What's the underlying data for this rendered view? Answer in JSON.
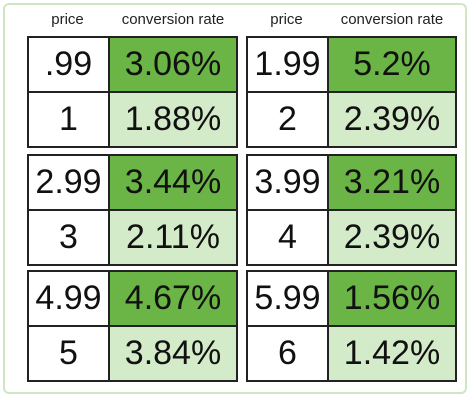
{
  "headers": [
    "price",
    "conversion rate",
    "price",
    "conversion rate"
  ],
  "blocks": [
    {
      "rows": [
        [
          ".99",
          "3.06%"
        ],
        [
          "1",
          "1.88%"
        ]
      ]
    },
    {
      "rows": [
        [
          "1.99",
          "5.2%"
        ],
        [
          "2",
          "2.39%"
        ]
      ]
    },
    {
      "rows": [
        [
          "2.99",
          "3.44%"
        ],
        [
          "3",
          "2.11%"
        ]
      ]
    },
    {
      "rows": [
        [
          "3.99",
          "3.21%"
        ],
        [
          "4",
          "2.39%"
        ]
      ]
    },
    {
      "rows": [
        [
          "4.99",
          "4.67%"
        ],
        [
          "5",
          "3.84%"
        ]
      ]
    },
    {
      "rows": [
        [
          "5.99",
          "1.56%"
        ],
        [
          "6",
          "1.42%"
        ]
      ]
    }
  ]
}
